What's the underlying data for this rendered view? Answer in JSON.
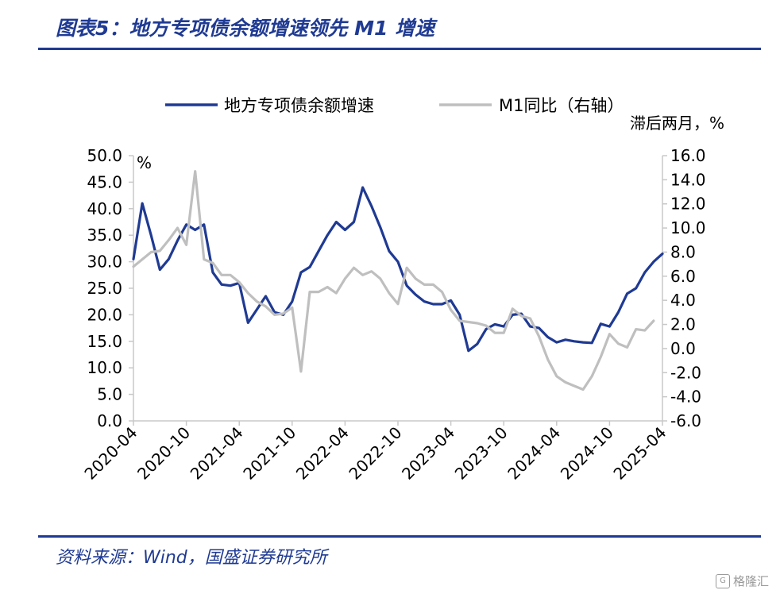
{
  "title": "图表5：地方专项债余额增速领先 M1 增速",
  "source": "资料来源：Wind，国盛证券研究所",
  "watermark": "格隆汇",
  "chart_data": {
    "type": "line",
    "left_axis_unit": "%",
    "right_axis_unit": "滞后两月，%",
    "ylim_left": [
      0,
      50
    ],
    "ylim_right": [
      -6,
      16
    ],
    "left_ticks": [
      "50.0",
      "45.0",
      "40.0",
      "35.0",
      "30.0",
      "25.0",
      "20.0",
      "15.0",
      "10.0",
      "5.0",
      "0.0"
    ],
    "right_ticks": [
      "16.0",
      "14.0",
      "12.0",
      "10.0",
      "8.0",
      "6.0",
      "4.0",
      "2.0",
      "0.0",
      "-2.0",
      "-4.0",
      "-6.0"
    ],
    "x_tick_labels": [
      "2020-04",
      "2020-10",
      "2021-04",
      "2021-10",
      "2022-04",
      "2022-10",
      "2023-04",
      "2023-10",
      "2024-04",
      "2024-10",
      "2025-04"
    ],
    "x_tick_index": [
      0,
      6,
      12,
      18,
      24,
      30,
      36,
      42,
      48,
      54,
      60
    ],
    "series": [
      {
        "name": "地方专项债余额增速",
        "axis": "left",
        "color": "#1f3a93",
        "start_index": 0,
        "values": [
          30.5,
          41.0,
          35.0,
          28.5,
          30.5,
          34.0,
          37.0,
          36.0,
          37.0,
          28.0,
          25.7,
          25.5,
          26.0,
          18.5,
          21.0,
          23.5,
          20.5,
          20.0,
          22.5,
          28.0,
          29.0,
          32.0,
          35.0,
          37.5,
          36.0,
          37.5,
          44.0,
          40.5,
          36.5,
          32.0,
          30.0,
          25.5,
          23.8,
          22.5,
          22.0,
          22.0,
          22.7,
          20.0,
          13.2,
          14.5,
          17.3,
          18.2,
          17.8,
          20.0,
          20.2,
          17.8,
          17.5,
          15.8,
          14.8,
          15.3,
          15.0,
          14.8,
          14.7,
          18.3,
          17.8,
          20.5,
          24.0,
          25.0,
          28.0,
          30.0,
          31.5
        ]
      },
      {
        "name": "M1同比（右轴）",
        "axis": "right",
        "color": "#bfbfbf",
        "start_index": 0,
        "values": [
          6.8,
          7.4,
          8.0,
          8.1,
          9.0,
          10.0,
          8.6,
          14.7,
          7.4,
          7.1,
          6.1,
          6.1,
          5.5,
          4.6,
          3.9,
          3.5,
          2.8,
          2.9,
          3.4,
          -1.9,
          4.7,
          4.7,
          5.1,
          4.6,
          5.8,
          6.7,
          6.1,
          6.4,
          5.8,
          4.6,
          3.7,
          6.7,
          5.8,
          5.3,
          5.3,
          4.7,
          3.2,
          2.3,
          2.2,
          2.1,
          1.9,
          1.3,
          1.3,
          3.3,
          2.7,
          2.5,
          1.0,
          -0.9,
          -2.3,
          -2.8,
          -3.1,
          -3.4,
          -2.3,
          -0.7,
          1.2,
          0.4,
          0.1,
          1.6,
          1.5,
          2.3
        ]
      }
    ]
  }
}
